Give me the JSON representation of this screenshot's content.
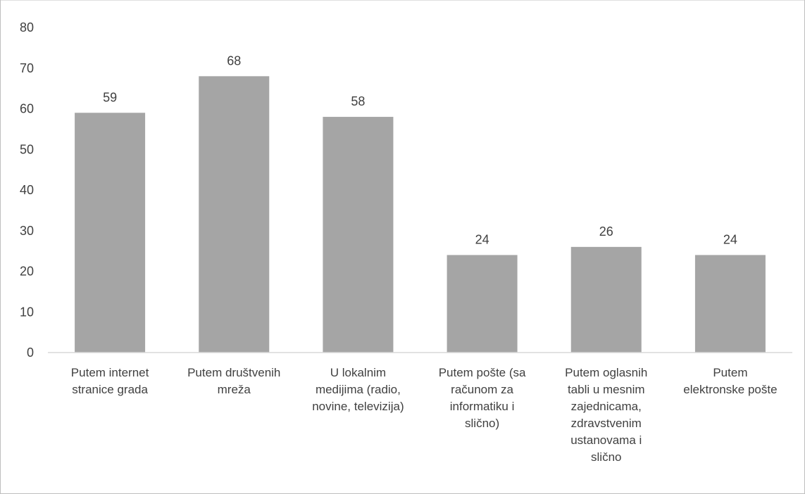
{
  "chart_data": {
    "type": "bar",
    "title": "",
    "xlabel": "",
    "ylabel": "",
    "ylim": [
      0,
      80
    ],
    "yticks": [
      0,
      10,
      20,
      30,
      40,
      50,
      60,
      70,
      80
    ],
    "grid": false,
    "legend": "none",
    "bar_color": "#a5a5a5",
    "text_color": "#404040",
    "categories": [
      [
        "Putem internet",
        "stranice grada"
      ],
      [
        "Putem društvenih",
        "mreža"
      ],
      [
        "U lokalnim",
        "medijima (radio,",
        "novine, televizija)"
      ],
      [
        "Putem pošte (sa",
        "računom za",
        "informatiku i",
        "slično)"
      ],
      [
        "Putem oglasnih",
        "tabli u mesnim",
        "zajednicama,",
        "zdravstvenim",
        "ustanovama i",
        "slično"
      ],
      [
        "Putem",
        "elektronske pošte"
      ]
    ],
    "values": [
      59,
      68,
      58,
      24,
      26,
      24
    ],
    "data_labels": [
      "59",
      "68",
      "58",
      "24",
      "26",
      "24"
    ]
  }
}
